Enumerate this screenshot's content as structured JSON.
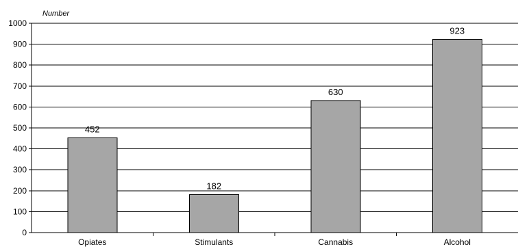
{
  "chart_data": {
    "type": "bar",
    "title": "",
    "xlabel": "",
    "ylabel": "Number",
    "categories": [
      "Opiates",
      "Stimulants",
      "Cannabis",
      "Alcohol"
    ],
    "values": [
      452,
      182,
      630,
      923
    ],
    "data_labels": [
      "452",
      "182",
      "630",
      "923"
    ],
    "ylim": [
      0,
      1000
    ],
    "yticks": [
      "0",
      "100",
      "200",
      "300",
      "400",
      "500",
      "600",
      "700",
      "800",
      "900",
      "1000"
    ],
    "grid": true,
    "legend": "none",
    "bar_color": "#a6a6a6",
    "bar_edge_color": "#000000"
  }
}
